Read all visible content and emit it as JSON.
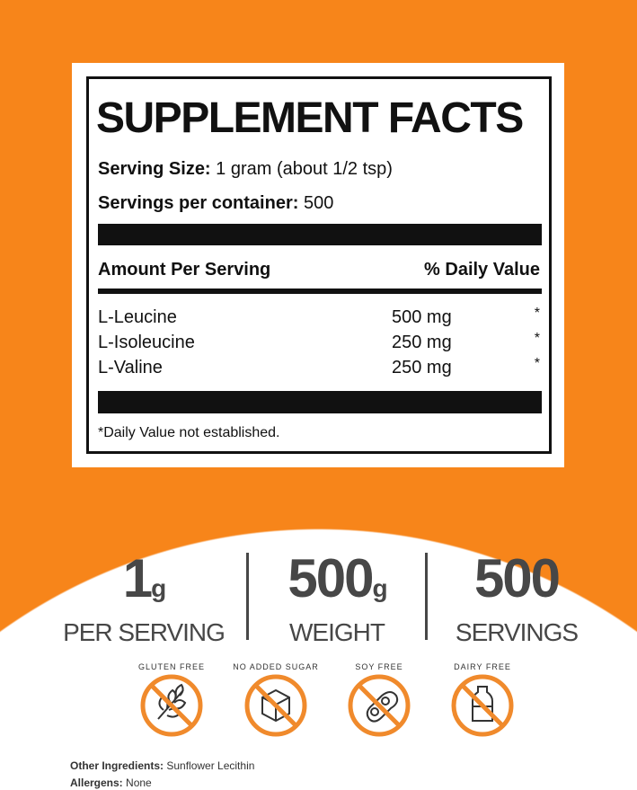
{
  "colors": {
    "brand_orange": "#f7851a",
    "text_gray": "#474747",
    "label_black": "#111111"
  },
  "facts": {
    "title": "SUPPLEMENT FACTS",
    "serving_size_label": "Serving Size:",
    "serving_size_value": " 1 gram (about 1/2 tsp)",
    "servings_label": "Servings per container:",
    "servings_value": " 500",
    "header_amount": "Amount Per Serving",
    "header_dv": "% Daily Value",
    "rows": [
      {
        "name": "L-Leucine",
        "amount": "500 mg",
        "dv": "*"
      },
      {
        "name": "L-Isoleucine",
        "amount": "250 mg",
        "dv": "*"
      },
      {
        "name": "L-Valine",
        "amount": "250 mg",
        "dv": "*"
      }
    ],
    "footnote": "*Daily Value not established."
  },
  "stats": [
    {
      "number": "1",
      "unit": "g",
      "label": "PER SERVING"
    },
    {
      "number": "500",
      "unit": "g",
      "label": "WEIGHT"
    },
    {
      "number": "500",
      "unit": "",
      "label": "SERVINGS"
    }
  ],
  "badges": [
    {
      "label": "GLUTEN FREE",
      "icon": "wheat-icon"
    },
    {
      "label": "NO ADDED SUGAR",
      "icon": "sugar-cube-icon"
    },
    {
      "label": "SOY FREE",
      "icon": "soybean-icon"
    },
    {
      "label": "DAIRY FREE",
      "icon": "milk-bottle-icon"
    }
  ],
  "other_ingredients_label": "Other Ingredients:",
  "other_ingredients_value": " Sunflower Lecithin",
  "allergens_label": "Allergens:",
  "allergens_value": " None"
}
